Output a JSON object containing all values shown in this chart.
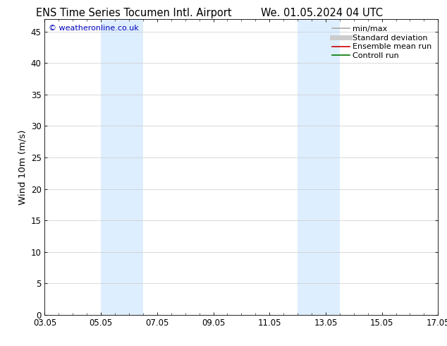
{
  "title_left": "ENS Time Series Tocumen Intl. Airport",
  "title_right": "We. 01.05.2024 04 UTC",
  "ylabel": "Wind 10m (m/s)",
  "watermark": "© weatheronline.co.uk",
  "watermark_color": "#0000bb",
  "xtick_labels": [
    "03.05",
    "05.05",
    "07.05",
    "09.05",
    "11.05",
    "13.05",
    "15.05",
    "17.05"
  ],
  "xtick_positions": [
    2,
    4,
    6,
    8,
    10,
    12,
    14,
    16
  ],
  "ylim": [
    0,
    47
  ],
  "ytick_positions": [
    0,
    5,
    10,
    15,
    20,
    25,
    30,
    35,
    40,
    45
  ],
  "ytick_labels": [
    "0",
    "5",
    "10",
    "15",
    "20",
    "25",
    "30",
    "35",
    "40",
    "45"
  ],
  "shaded_bands": [
    {
      "xmin": 4.0,
      "xmax": 5.5,
      "color": "#ddeeff"
    },
    {
      "xmin": 11.0,
      "xmax": 12.5,
      "color": "#ddeeff"
    }
  ],
  "legend_entries": [
    {
      "label": "min/max",
      "color": "#aaaaaa",
      "lw": 1.2,
      "style": "solid"
    },
    {
      "label": "Standard deviation",
      "color": "#cccccc",
      "lw": 5,
      "style": "solid"
    },
    {
      "label": "Ensemble mean run",
      "color": "#cc0000",
      "lw": 1.2,
      "style": "solid"
    },
    {
      "label": "Controll run",
      "color": "#007700",
      "lw": 1.2,
      "style": "solid"
    }
  ],
  "bg_color": "#ffffff",
  "plot_bg_color": "#ffffff",
  "grid_color": "#cccccc",
  "border_color": "#000000",
  "title_fontsize": 10.5,
  "tick_fontsize": 8.5,
  "ylabel_fontsize": 9.5,
  "watermark_fontsize": 8,
  "legend_fontsize": 8
}
